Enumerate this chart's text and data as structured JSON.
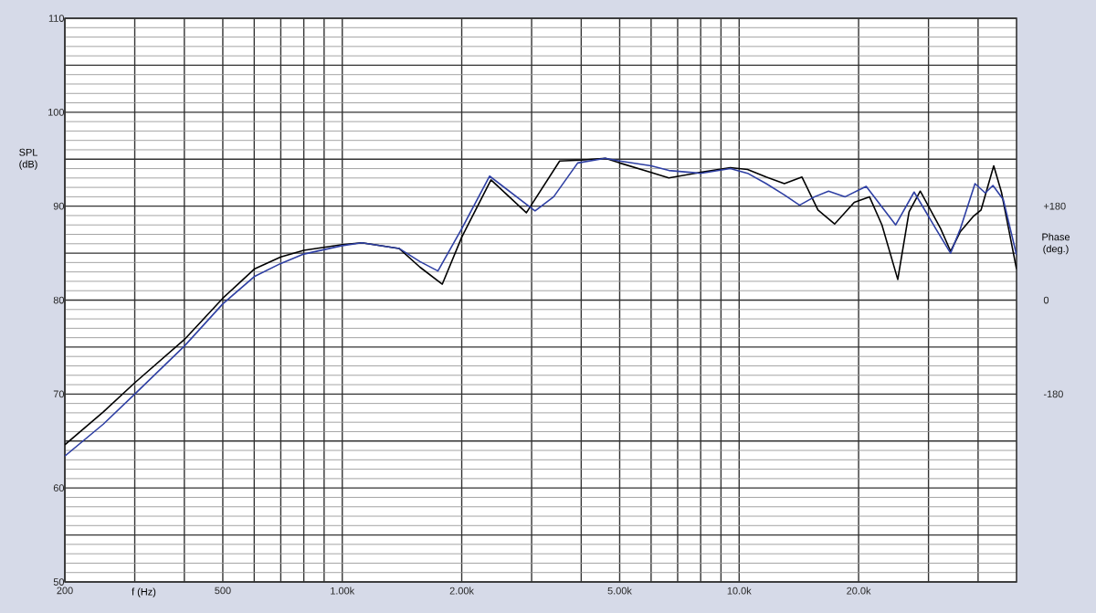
{
  "chart_data": {
    "type": "line",
    "xlabel": "f (Hz)",
    "ylabel": "SPL (dB)",
    "y2label": "Phase (deg.)",
    "log": "x",
    "grid": true,
    "xlim": [
      200,
      50000
    ],
    "xticks": [
      200,
      {
        "value": 300,
        "label": null
      },
      {
        "value": 400,
        "label": null
      },
      500,
      {
        "value": 600,
        "label": null
      },
      {
        "value": 700,
        "label": null
      },
      {
        "value": 800,
        "label": null
      },
      {
        "value": 900,
        "label": null
      },
      {
        "value": 1000,
        "label": "1.00k"
      },
      {
        "value": 2000,
        "label": "2.00k"
      },
      {
        "value": 3000,
        "label": null
      },
      {
        "value": 4000,
        "label": null
      },
      {
        "value": 5000,
        "label": "5.00k"
      },
      {
        "value": 6000,
        "label": null
      },
      {
        "value": 7000,
        "label": null
      },
      {
        "value": 8000,
        "label": null
      },
      {
        "value": 9000,
        "label": null
      },
      {
        "value": 10000,
        "label": "10.0k"
      },
      {
        "value": 20000,
        "label": "20.0k"
      },
      {
        "value": 30000,
        "label": null
      },
      {
        "value": 40000,
        "label": null
      }
    ],
    "ylim": [
      50,
      110
    ],
    "yticks": [
      50,
      {
        "value": 55,
        "label": null
      },
      60,
      {
        "value": 65,
        "label": null
      },
      70,
      {
        "value": 75,
        "label": null
      },
      80,
      {
        "value": 85,
        "label": null
      },
      90,
      {
        "value": 95,
        "label": null
      },
      100,
      {
        "value": 105,
        "label": null
      },
      110
    ],
    "y2lim": [
      -540,
      540
    ],
    "y2ticks": [
      -180,
      0,
      {
        "value": 180,
        "label": "+180"
      }
    ],
    "series": [
      {
        "color": "#000000",
        "x": [
          200,
          250,
          300,
          400,
          500,
          600,
          700,
          800,
          1000,
          1120,
          1390,
          1570,
          1787,
          2000,
          2370,
          2910,
          3530,
          4000,
          4600,
          5000,
          6000,
          6650,
          8000,
          9500,
          10500,
          11700,
          13000,
          14400,
          15800,
          17400,
          19500,
          21300,
          22900,
          25100,
          26800,
          28600,
          32200,
          34100,
          36100,
          38900,
          40700,
          43800,
          45800,
          50000
        ],
        "values": [
          64.6,
          68.1,
          71.2,
          75.8,
          80.2,
          83.3,
          84.6,
          85.3,
          85.9,
          86.1,
          85.5,
          83.5,
          81.7,
          86.7,
          92.8,
          89.3,
          94.8,
          94.9,
          95.1,
          94.6,
          93.6,
          93.0,
          93.6,
          94.1,
          93.9,
          93.1,
          92.4,
          93.1,
          89.6,
          88.1,
          90.4,
          91.0,
          88.0,
          82.2,
          89.4,
          91.6,
          87.6,
          85.2,
          87.3,
          88.9,
          89.6,
          94.3,
          91.5,
          83.3
        ]
      },
      {
        "color": "#2e3fa3",
        "x": [
          200,
          250,
          300,
          400,
          500,
          600,
          700,
          800,
          1000,
          1120,
          1390,
          1570,
          1742,
          2000,
          2350,
          3060,
          3410,
          3920,
          4600,
          5000,
          6000,
          6650,
          8000,
          9500,
          10500,
          11700,
          13000,
          14200,
          15500,
          16800,
          18500,
          20900,
          24800,
          27600,
          31300,
          34100,
          36100,
          39300,
          41700,
          43600,
          46300,
          50000
        ],
        "values": [
          63.4,
          66.8,
          70.0,
          75.1,
          79.6,
          82.5,
          83.9,
          84.9,
          85.8,
          86.1,
          85.5,
          84.1,
          83.1,
          87.6,
          93.2,
          89.5,
          91.0,
          94.6,
          95.1,
          94.8,
          94.3,
          93.8,
          93.5,
          94.0,
          93.5,
          92.4,
          91.2,
          90.1,
          91.0,
          91.6,
          91.0,
          92.1,
          88.0,
          91.5,
          87.6,
          85.0,
          87.6,
          92.4,
          91.4,
          92.2,
          90.7,
          84.8
        ]
      }
    ]
  }
}
